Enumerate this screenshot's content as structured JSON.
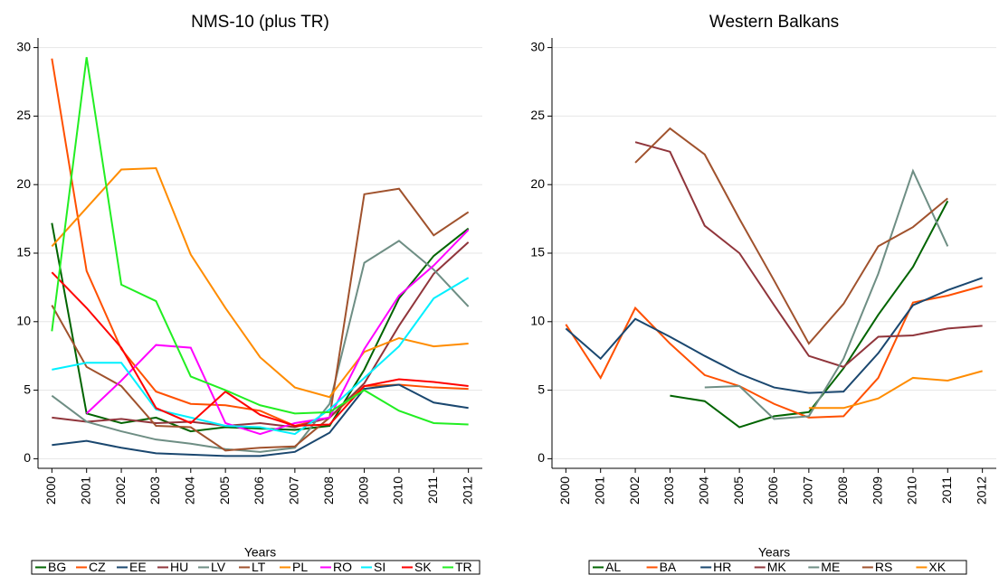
{
  "chart_data": [
    {
      "type": "line",
      "title": "NMS-10 (plus TR)",
      "xlabel": "Years",
      "x": [
        2000,
        2001,
        2002,
        2003,
        2004,
        2005,
        2006,
        2007,
        2008,
        2009,
        2010,
        2011,
        2012
      ],
      "xlim": [
        1999.6,
        2012.4
      ],
      "xticks": [
        2000,
        2001,
        2002,
        2003,
        2004,
        2005,
        2006,
        2007,
        2008,
        2009,
        2010,
        2011,
        2012
      ],
      "ylim": [
        -0.7,
        30.7
      ],
      "yticks": [
        0,
        5,
        10,
        15,
        20,
        25,
        30
      ],
      "grid": true,
      "legend": "bottom",
      "series": [
        {
          "name": "BG",
          "color": "#006400",
          "values": [
            17.2,
            3.3,
            2.6,
            3.0,
            2.0,
            2.3,
            2.2,
            2.1,
            2.4,
            6.5,
            11.7,
            14.8,
            16.8
          ]
        },
        {
          "name": "CZ",
          "color": "#ff5000",
          "values": [
            29.2,
            13.7,
            8.0,
            4.9,
            4.0,
            3.9,
            3.5,
            2.4,
            3.0,
            5.3,
            5.4,
            5.2,
            5.1
          ]
        },
        {
          "name": "EE",
          "color": "#1a476f",
          "values": [
            1.0,
            1.3,
            0.8,
            0.4,
            0.3,
            0.2,
            0.2,
            0.5,
            1.9,
            5.1,
            5.4,
            4.1,
            3.7
          ]
        },
        {
          "name": "HU",
          "color": "#90353b",
          "values": [
            3.0,
            2.7,
            2.9,
            2.6,
            2.7,
            2.4,
            2.6,
            2.3,
            3.0,
            5.5,
            9.7,
            13.5,
            15.8
          ]
        },
        {
          "name": "LV",
          "color": "#6e8e84",
          "values": [
            4.6,
            2.7,
            2.0,
            1.4,
            1.1,
            0.7,
            0.5,
            0.8,
            4.0,
            14.3,
            15.9,
            13.8,
            11.1
          ]
        },
        {
          "name": "LT",
          "color": "#a0522d",
          "values": [
            11.2,
            6.7,
            5.3,
            2.4,
            2.3,
            0.6,
            0.8,
            0.9,
            3.0,
            19.3,
            19.7,
            16.3,
            18.0
          ]
        },
        {
          "name": "PL",
          "color": "#ff8c00",
          "values": [
            15.5,
            18.3,
            21.1,
            21.2,
            14.9,
            11.0,
            7.4,
            5.2,
            4.5,
            7.8,
            8.8,
            8.2,
            8.4
          ]
        },
        {
          "name": "RO",
          "color": "#ff00ff",
          "values": [
            null,
            3.3,
            5.7,
            8.3,
            8.1,
            2.6,
            1.8,
            2.6,
            3.0,
            8.0,
            11.9,
            14.1,
            16.7
          ]
        },
        {
          "name": "SI",
          "color": "#00f0ff",
          "values": [
            6.5,
            7.0,
            7.0,
            3.6,
            3.0,
            2.4,
            2.3,
            1.8,
            3.6,
            5.9,
            8.2,
            11.7,
            13.2
          ]
        },
        {
          "name": "SK",
          "color": "#ff0000",
          "values": [
            13.6,
            11.0,
            8.1,
            3.7,
            2.6,
            4.9,
            3.2,
            2.4,
            2.5,
            5.3,
            5.8,
            5.6,
            5.3
          ]
        },
        {
          "name": "TR",
          "color": "#22ee22",
          "values": [
            9.3,
            29.3,
            12.7,
            11.5,
            6.0,
            5.0,
            3.9,
            3.3,
            3.4,
            5.0,
            3.5,
            2.6,
            2.5
          ]
        }
      ]
    },
    {
      "type": "line",
      "title": "Western Balkans",
      "xlabel": "Years",
      "x": [
        2000,
        2001,
        2002,
        2003,
        2004,
        2005,
        2006,
        2007,
        2008,
        2009,
        2010,
        2011,
        2012
      ],
      "xlim": [
        1999.6,
        2012.4
      ],
      "xticks": [
        2000,
        2001,
        2002,
        2003,
        2004,
        2005,
        2006,
        2007,
        2008,
        2009,
        2010,
        2011,
        2012
      ],
      "ylim": [
        -0.7,
        30.7
      ],
      "yticks": [
        0,
        5,
        10,
        15,
        20,
        25,
        30
      ],
      "grid": true,
      "legend": "bottom",
      "series": [
        {
          "name": "AL",
          "color": "#006400",
          "values": [
            null,
            null,
            null,
            4.6,
            4.2,
            2.3,
            3.1,
            3.4,
            6.6,
            10.5,
            14.0,
            18.8,
            null
          ]
        },
        {
          "name": "BA",
          "color": "#ff5000",
          "values": [
            9.8,
            5.9,
            11.0,
            8.4,
            6.1,
            5.3,
            4.0,
            3.0,
            3.1,
            5.9,
            11.4,
            11.9,
            12.6
          ]
        },
        {
          "name": "HR",
          "color": "#1a476f",
          "values": [
            9.5,
            7.3,
            10.2,
            8.9,
            7.5,
            6.2,
            5.2,
            4.8,
            4.9,
            7.7,
            11.2,
            12.3,
            13.2
          ]
        },
        {
          "name": "MK",
          "color": "#90353b",
          "values": [
            null,
            null,
            23.1,
            22.4,
            17.0,
            15.0,
            11.2,
            7.5,
            6.7,
            8.9,
            9.0,
            9.5,
            9.7
          ]
        },
        {
          "name": "ME",
          "color": "#6e8e84",
          "values": [
            null,
            null,
            null,
            null,
            5.2,
            5.3,
            2.9,
            3.1,
            7.3,
            13.5,
            21.0,
            15.5,
            null
          ]
        },
        {
          "name": "RS",
          "color": "#a0522d",
          "values": [
            null,
            null,
            21.6,
            24.1,
            22.2,
            17.5,
            13.0,
            8.4,
            11.3,
            15.5,
            16.9,
            19.0,
            null
          ]
        },
        {
          "name": "XK",
          "color": "#ff8c00",
          "values": [
            null,
            null,
            null,
            null,
            null,
            null,
            null,
            3.7,
            3.7,
            4.4,
            5.9,
            5.7,
            6.4
          ]
        }
      ]
    }
  ]
}
